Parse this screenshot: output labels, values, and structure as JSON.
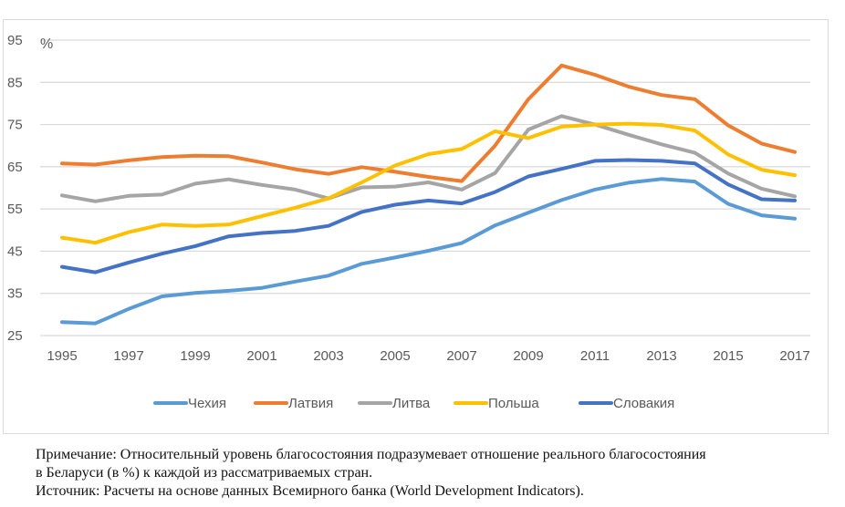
{
  "chart_data": {
    "type": "line",
    "title": "",
    "unit_label": "%",
    "xlabel": "",
    "ylabel": "%",
    "ylim": [
      25,
      95
    ],
    "yticks": [
      25,
      35,
      45,
      55,
      65,
      75,
      85,
      95
    ],
    "xlim": [
      1995,
      2017
    ],
    "x": [
      1995,
      1996,
      1997,
      1998,
      1999,
      2000,
      2001,
      2002,
      2003,
      2004,
      2005,
      2006,
      2007,
      2008,
      2009,
      2010,
      2011,
      2012,
      2013,
      2014,
      2015,
      2016,
      2017
    ],
    "xtick_labels": [
      "1995",
      "1997",
      "1999",
      "2001",
      "2003",
      "2005",
      "2007",
      "2009",
      "2011",
      "2013",
      "2015",
      "2017"
    ],
    "grid": true,
    "legend_position": "bottom",
    "series": [
      {
        "name": "Чехия",
        "color": "#5b9bd5",
        "values": [
          28.2,
          27.9,
          31.3,
          34.3,
          35.1,
          35.6,
          36.3,
          37.8,
          39.2,
          42.0,
          43.5,
          45.1,
          46.9,
          51.1,
          54.1,
          57.1,
          59.6,
          61.2,
          62.1,
          61.5,
          56.2,
          53.5,
          52.7
        ]
      },
      {
        "name": "Латвия",
        "color": "#ed7d31",
        "values": [
          65.8,
          65.5,
          66.5,
          67.3,
          67.6,
          67.5,
          66.0,
          64.4,
          63.3,
          64.9,
          63.8,
          62.6,
          61.6,
          70.0,
          81.0,
          89.0,
          86.8,
          84.0,
          82.0,
          81.0,
          74.8,
          70.5,
          68.5
        ]
      },
      {
        "name": "Литва",
        "color": "#a5a5a5",
        "values": [
          58.2,
          56.8,
          58.1,
          58.4,
          61.0,
          62.0,
          60.7,
          59.6,
          57.5,
          60.1,
          60.3,
          61.3,
          59.6,
          63.5,
          73.8,
          77.0,
          75.0,
          72.6,
          70.3,
          68.3,
          63.4,
          59.8,
          58.0
        ]
      },
      {
        "name": "Польша",
        "color": "#ffc000",
        "values": [
          48.2,
          47.0,
          49.5,
          51.3,
          51.0,
          51.3,
          53.3,
          55.3,
          57.5,
          61.3,
          65.3,
          68.0,
          69.2,
          73.4,
          71.8,
          74.5,
          75.0,
          75.2,
          74.9,
          73.6,
          67.9,
          64.3,
          63.0
        ]
      },
      {
        "name": "Словакия",
        "color": "#4472c4",
        "values": [
          41.3,
          40.0,
          42.3,
          44.4,
          46.2,
          48.5,
          49.3,
          49.8,
          51.0,
          54.3,
          56.0,
          57.0,
          56.3,
          59.0,
          62.7,
          64.5,
          66.4,
          66.6,
          66.4,
          65.8,
          60.8,
          57.3,
          57.0
        ]
      }
    ]
  },
  "notes": {
    "note_line1": "Примечание: Относительный уровень благосостояния подразумевает отношение реального благосостояния",
    "note_line2": "в Беларуси (в %) к каждой из рассматриваемых стран.",
    "source_line": "Источник: Расчеты на основе данных Всемирного банка (World Development Indicators)."
  }
}
